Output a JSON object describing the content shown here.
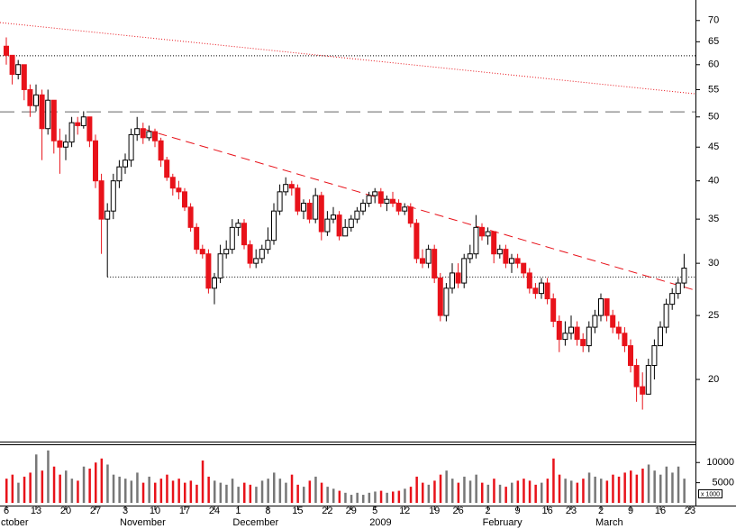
{
  "chart_data": {
    "type": "candlestick",
    "log_scale": true,
    "categories": [
      "6",
      null,
      null,
      null,
      null,
      "13",
      null,
      null,
      null,
      null,
      "20",
      null,
      null,
      null,
      null,
      "27",
      null,
      null,
      null,
      null,
      "3",
      null,
      null,
      null,
      null,
      "10",
      null,
      null,
      null,
      null,
      "17",
      null,
      null,
      null,
      null,
      "24",
      null,
      null,
      null,
      "1",
      null,
      null,
      null,
      null,
      "8",
      null,
      null,
      null,
      null,
      "15",
      null,
      null,
      null,
      null,
      "22",
      null,
      null,
      null,
      "29",
      null,
      null,
      null,
      "5",
      null,
      null,
      null,
      null,
      "12",
      null,
      null,
      null,
      null,
      "19",
      null,
      null,
      null,
      "26",
      null,
      null,
      null,
      null,
      "2",
      null,
      null,
      null,
      null,
      "9",
      null,
      null,
      null,
      null,
      "16",
      null,
      null,
      null,
      "23",
      null,
      null,
      null,
      null,
      "2",
      null,
      null,
      null,
      null,
      "9",
      null,
      null,
      null,
      null,
      "16",
      null,
      null,
      null,
      null,
      "23"
    ],
    "month_labels": [
      {
        "label": "ctober",
        "index": 0
      },
      {
        "label": "November",
        "index": 20
      },
      {
        "label": "December",
        "index": 39
      },
      {
        "label": "2009",
        "index": 62
      },
      {
        "label": "February",
        "index": 81
      },
      {
        "label": "March",
        "index": 100
      }
    ],
    "open": [
      64,
      62,
      58,
      60,
      55,
      52,
      54,
      48,
      53,
      46,
      45,
      45.8,
      49,
      48.5,
      50,
      46,
      40,
      35,
      36,
      40,
      42,
      43,
      47,
      48,
      46.5,
      47.5,
      46,
      43,
      40.5,
      39,
      38.5,
      36.5,
      34,
      31.5,
      31,
      27.5,
      28.5,
      31,
      31.5,
      34,
      34.5,
      32,
      30,
      30.5,
      31.5,
      32.5,
      36,
      38.5,
      39.5,
      39,
      36,
      37,
      35,
      38,
      33.5,
      35,
      35.5,
      33,
      34,
      35,
      36,
      37,
      38,
      38.5,
      37,
      37.5,
      37,
      36,
      36.5,
      34.5,
      30.5,
      30,
      31.5,
      28.5,
      25,
      27.5,
      29,
      28,
      30.5,
      31,
      34,
      33,
      33.5,
      31,
      31.5,
      30,
      30.5,
      30,
      29,
      27.5,
      27,
      28,
      26.5,
      24.5,
      23,
      23.5,
      24,
      23,
      22.5,
      24,
      25,
      26.5,
      25,
      24,
      23.5,
      22.5,
      21,
      19.5,
      19,
      21,
      22.5,
      24,
      26,
      27,
      28,
      null
    ],
    "high": [
      66,
      62,
      61,
      60,
      56,
      56,
      55,
      55,
      53,
      48,
      47,
      50,
      50,
      51,
      50,
      47,
      41,
      37,
      41,
      43,
      44,
      48,
      50,
      49,
      48.5,
      48,
      46.5,
      43.5,
      41,
      40,
      39,
      37,
      34.5,
      32,
      31.5,
      29,
      32,
      32.5,
      35,
      35,
      35,
      32.5,
      31.5,
      32,
      34,
      37,
      39.5,
      40.5,
      40,
      39.5,
      37.5,
      37.5,
      39,
      38.5,
      36,
      36.5,
      36,
      35,
      35.5,
      36.5,
      37.5,
      38.5,
      39,
      39,
      38,
      38.5,
      37.5,
      37,
      37,
      35,
      31.5,
      32,
      32,
      29,
      28,
      30,
      30,
      31,
      32,
      35.5,
      34.5,
      34,
      33.5,
      32,
      32,
      31,
      31,
      30,
      29.5,
      28,
      28.5,
      28.5,
      27,
      25,
      24.5,
      25,
      24.5,
      23.5,
      24.5,
      25.5,
      27,
      26.5,
      25.5,
      24.5,
      24,
      23,
      21.5,
      20.5,
      21.5,
      23,
      24.5,
      26.5,
      27.5,
      28.5,
      31,
      null
    ],
    "low": [
      60,
      56,
      57,
      53,
      50,
      51,
      43,
      47,
      44,
      41,
      43,
      45,
      47,
      48,
      45,
      39,
      31,
      28.6,
      35,
      39,
      41,
      42,
      46,
      45.5,
      46,
      45,
      42,
      40,
      38,
      37.5,
      36,
      33.5,
      31,
      30.5,
      27,
      26,
      28,
      30.5,
      31,
      33,
      31.5,
      29.5,
      29.5,
      30,
      31,
      32,
      35.5,
      38,
      38,
      35.5,
      35,
      34.5,
      34.5,
      32.5,
      33,
      34.5,
      32.5,
      33,
      33.5,
      34.5,
      35.5,
      36.5,
      37,
      36.5,
      36,
      36.5,
      35.5,
      35.5,
      34,
      30,
      29.5,
      29.5,
      28,
      24.5,
      24.5,
      27,
      27.5,
      27.5,
      30,
      30.5,
      32.5,
      32,
      30,
      30.5,
      29.5,
      29,
      29.5,
      28.5,
      27,
      26.5,
      26.5,
      26,
      24,
      22,
      22.5,
      23,
      22.5,
      22,
      22,
      23.5,
      24.5,
      24.5,
      23.5,
      23,
      22,
      20.5,
      18.5,
      18,
      19,
      20,
      22.5,
      23.5,
      25.5,
      26.5,
      27.5,
      null
    ],
    "close": [
      62,
      58,
      60,
      55,
      52,
      54,
      48,
      53,
      46,
      45,
      45.8,
      49,
      48.5,
      50,
      46,
      40,
      35,
      36,
      40,
      42,
      43,
      47,
      48,
      46.5,
      47.5,
      46,
      43,
      40.5,
      39,
      38.5,
      36.5,
      34,
      31.5,
      31,
      27.5,
      28.5,
      31,
      31.5,
      34,
      34.5,
      32,
      30,
      30.5,
      31.5,
      32.5,
      36,
      38.5,
      39.5,
      39,
      36,
      37,
      35,
      38,
      33.5,
      35,
      35.5,
      33,
      34,
      35,
      36,
      37,
      38,
      38.5,
      37,
      37.5,
      37,
      36,
      36.5,
      34.5,
      30.5,
      30,
      31.5,
      28.5,
      25,
      27.5,
      29,
      28,
      30.5,
      31,
      34,
      33,
      33.5,
      31,
      31.5,
      30,
      30.5,
      30,
      29,
      27.5,
      27,
      28,
      26.5,
      24.5,
      23,
      23.5,
      24,
      23,
      22.5,
      24,
      25,
      26.5,
      25,
      24,
      23.5,
      22.5,
      21,
      19.5,
      19,
      21,
      22.5,
      24,
      26,
      27,
      28,
      29.5,
      null
    ],
    "up_color": "#ffffff",
    "down_color": "#e8121a",
    "ylim": [
      16.1,
      75.2
    ],
    "yticks": [
      20,
      25,
      30,
      35,
      40,
      45,
      50,
      55,
      60,
      65,
      70
    ],
    "hlines": [
      {
        "value": 61.9,
        "color": "#000000",
        "style": "dotted"
      },
      {
        "value": 50.9,
        "color": "#666666",
        "style": "longdash"
      },
      {
        "value": 28.6,
        "color": "#000000",
        "style": "dotted",
        "start": 17
      }
    ],
    "trend_lines": [
      {
        "from": [
          -1.06,
          69.5
        ],
        "to": [
          115.9,
          54.2
        ],
        "color": "#e8121a",
        "style": "dotted"
      },
      {
        "from": [
          23.2,
          47.9
        ],
        "to": [
          115.9,
          27.3
        ],
        "color": "#e8121a",
        "style": "dashed"
      }
    ],
    "volume": {
      "values": [
        6000,
        7000,
        5000,
        6500,
        7500,
        12000,
        8000,
        13000,
        9000,
        7000,
        8000,
        6000,
        5500,
        9000,
        8500,
        10000,
        11000,
        9500,
        7000,
        6500,
        6000,
        5500,
        7500,
        5000,
        6500,
        5000,
        6000,
        7000,
        5500,
        6000,
        5000,
        5500,
        4500,
        10500,
        6500,
        5500,
        5000,
        4500,
        6000,
        4000,
        5000,
        4500,
        4000,
        5500,
        6000,
        7500,
        6000,
        5000,
        7000,
        4500,
        4000,
        5500,
        6500,
        5000,
        4000,
        3500,
        3000,
        2500,
        2000,
        2500,
        2000,
        2500,
        2800,
        3000,
        2500,
        2800,
        3000,
        3500,
        4000,
        6500,
        5000,
        4500,
        5500,
        7000,
        8000,
        6000,
        5000,
        6500,
        5500,
        7000,
        5000,
        4500,
        6000,
        4500,
        4000,
        5000,
        5500,
        6000,
        5500,
        4500,
        5000,
        6000,
        11000,
        7000,
        6000,
        5500,
        5000,
        6000,
        7500,
        6500,
        6000,
        5500,
        7000,
        6500,
        7500,
        8000,
        7000,
        8500,
        9500,
        8000,
        7000,
        9000,
        7500,
        9000,
        6000,
        null
      ],
      "up_color": "#777777",
      "down_color": "#e8121a",
      "ylim": [
        0,
        14300
      ],
      "yticks": [
        5000,
        10000
      ],
      "unit_label": "x 1000"
    }
  }
}
